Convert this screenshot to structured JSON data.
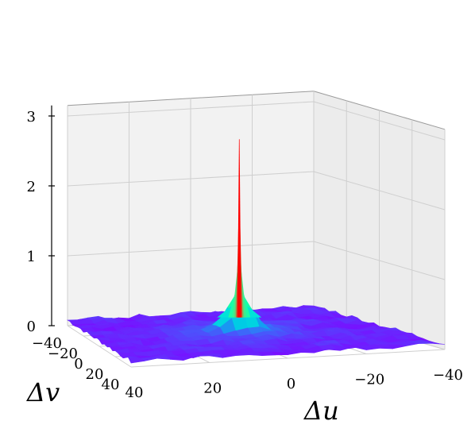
{
  "chart_data": {
    "type": "surface",
    "title": "",
    "xlabel": "Δu",
    "ylabel": "Δv",
    "zlabel": "",
    "x_ticks": [
      "−40",
      "−20",
      "0",
      "20",
      "40"
    ],
    "y_ticks": [
      "−40",
      "−20",
      "0",
      "20",
      "40"
    ],
    "z_ticks": [
      "0",
      "1",
      "2",
      "3"
    ],
    "xlim": [
      -40,
      40
    ],
    "ylim": [
      -40,
      40
    ],
    "zlim": [
      0,
      3
    ],
    "colormap": "rainbow",
    "grid": true,
    "surface": {
      "description": "sharp peak at origin on a near-flat noisy floor",
      "peak": {
        "du": 0,
        "dv": 0,
        "value": 2.85
      },
      "floor_value": 0.05
    }
  }
}
